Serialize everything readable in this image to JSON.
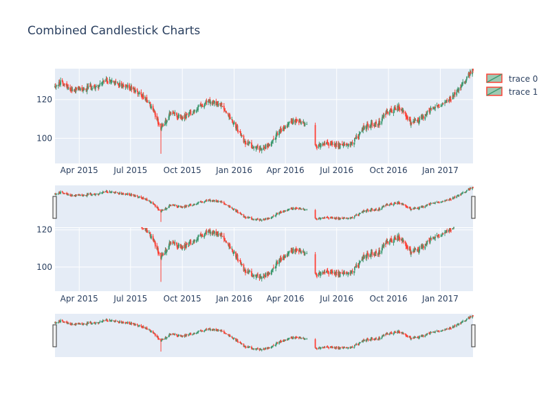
{
  "chart_data": {
    "type": "candlestick",
    "title": "Combined Candlestick Charts",
    "x_range": [
      "2015-02-17",
      "2017-02-28"
    ],
    "x_tick_labels": [
      "Apr 2015",
      "Jul 2015",
      "Oct 2015",
      "Jan 2016",
      "Apr 2016",
      "Jul 2016",
      "Oct 2016",
      "Jan 2017"
    ],
    "x_tick_dates": [
      "2015-04-01",
      "2015-07-01",
      "2015-10-01",
      "2016-01-01",
      "2016-04-01",
      "2016-07-01",
      "2016-10-01",
      "2017-01-01"
    ],
    "top_panel": {
      "y_range": [
        87,
        136
      ],
      "y_tick_labels": [
        "100",
        "120"
      ],
      "y_ticks": [
        100,
        120
      ]
    },
    "bottom_panel": {
      "y_range": [
        87,
        121
      ],
      "y_tick_labels": [
        "100",
        "120"
      ],
      "y_ticks": [
        100,
        120
      ]
    },
    "rangeslider": true,
    "grid": true,
    "legend_position": "top-right",
    "increasing_color": "#3d9970",
    "decreasing_color": "#ff4136",
    "plot_bg": "#e5ecf6",
    "series": [
      {
        "name": "trace 0",
        "legend_label": "trace 0"
      },
      {
        "name": "trace 1",
        "legend_label": "trace 1"
      }
    ],
    "trend": [
      {
        "x": "2015-02-17",
        "close": 127
      },
      {
        "x": "2015-03-01",
        "close": 129
      },
      {
        "x": "2015-03-20",
        "close": 125
      },
      {
        "x": "2015-04-15",
        "close": 126
      },
      {
        "x": "2015-05-05",
        "close": 127
      },
      {
        "x": "2015-05-20",
        "close": 130
      },
      {
        "x": "2015-06-10",
        "close": 128
      },
      {
        "x": "2015-07-01",
        "close": 126
      },
      {
        "x": "2015-07-20",
        "close": 123
      },
      {
        "x": "2015-08-10",
        "close": 115
      },
      {
        "x": "2015-08-24",
        "close": 105
      },
      {
        "x": "2015-09-10",
        "close": 113
      },
      {
        "x": "2015-10-01",
        "close": 110
      },
      {
        "x": "2015-10-25",
        "close": 115
      },
      {
        "x": "2015-11-15",
        "close": 119
      },
      {
        "x": "2015-12-10",
        "close": 117
      },
      {
        "x": "2016-01-01",
        "close": 108
      },
      {
        "x": "2016-01-20",
        "close": 98
      },
      {
        "x": "2016-02-10",
        "close": 95
      },
      {
        "x": "2016-03-01",
        "close": 96
      },
      {
        "x": "2016-03-20",
        "close": 103
      },
      {
        "x": "2016-04-20",
        "close": 110
      },
      {
        "x": "2016-05-15",
        "close": 105
      },
      {
        "x": "2016-05-25",
        "close": 96
      },
      {
        "x": "2016-06-20",
        "close": 97
      },
      {
        "x": "2016-07-10",
        "close": 96
      },
      {
        "x": "2016-07-30",
        "close": 98
      },
      {
        "x": "2016-08-20",
        "close": 106
      },
      {
        "x": "2016-09-15",
        "close": 108
      },
      {
        "x": "2016-09-25",
        "close": 113
      },
      {
        "x": "2016-10-20",
        "close": 116
      },
      {
        "x": "2016-11-10",
        "close": 108
      },
      {
        "x": "2016-12-01",
        "close": 111
      },
      {
        "x": "2016-12-20",
        "close": 116
      },
      {
        "x": "2017-01-20",
        "close": 120
      },
      {
        "x": "2017-02-10",
        "close": 128
      },
      {
        "x": "2017-02-28",
        "close": 136
      }
    ],
    "gaps": [
      {
        "from": "2016-05-10",
        "to": "2016-05-23"
      }
    ]
  }
}
